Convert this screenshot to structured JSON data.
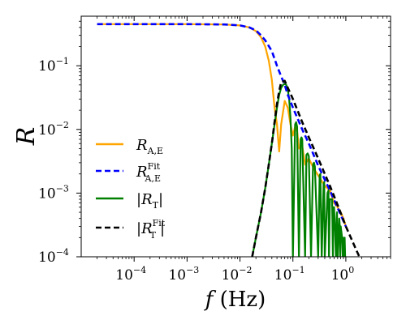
{
  "chart_data": {
    "type": "line",
    "x_scale": "log",
    "y_scale": "log",
    "xlim": [
      1e-05,
      7
    ],
    "ylim": [
      0.0001,
      0.6
    ],
    "x_ticks": [
      {
        "value": 0.0001,
        "base": "10",
        "exp": "−4"
      },
      {
        "value": 0.001,
        "base": "10",
        "exp": "−3"
      },
      {
        "value": 0.01,
        "base": "10",
        "exp": "−2"
      },
      {
        "value": 0.1,
        "base": "10",
        "exp": "−1"
      },
      {
        "value": 1,
        "base": "10",
        "exp": "0"
      }
    ],
    "y_ticks": [
      {
        "value": 0.0001,
        "base": "10",
        "exp": "−4"
      },
      {
        "value": 0.001,
        "base": "10",
        "exp": "−3"
      },
      {
        "value": 0.01,
        "base": "10",
        "exp": "−2"
      },
      {
        "value": 0.1,
        "base": "10",
        "exp": "−1"
      }
    ],
    "xlabel": "f (Hz)",
    "ylabel": "R",
    "grid": false,
    "legend_placement": "lower-left",
    "series": [
      {
        "name": "R_A,E",
        "color": "#ffa500",
        "style": "solid",
        "x": [
          2e-05,
          0.0001,
          0.001,
          0.005,
          0.01,
          0.015,
          0.02,
          0.025,
          0.03,
          0.035,
          0.04,
          0.045,
          0.05,
          0.055,
          0.06,
          0.07,
          0.08,
          0.09,
          0.1,
          0.11,
          0.12,
          0.13,
          0.15,
          0.17,
          0.2,
          0.25,
          0.3,
          0.4,
          0.5,
          0.6,
          0.7,
          0.8,
          0.9,
          1.0
        ],
        "y": [
          0.45,
          0.45,
          0.45,
          0.445,
          0.43,
          0.4,
          0.35,
          0.28,
          0.2,
          0.12,
          0.06,
          0.022,
          0.012,
          0.0045,
          0.012,
          0.028,
          0.022,
          0.012,
          0.008,
          0.011,
          0.0095,
          0.005,
          0.0055,
          0.0028,
          0.0035,
          0.0024,
          0.0019,
          0.0013,
          0.0011,
          0.0007,
          0.0006,
          0.0005,
          0.0004,
          0.0003
        ]
      },
      {
        "name": "R_A,E^Fit",
        "color": "#0000ff",
        "style": "dashed",
        "x": [
          2e-05,
          0.0001,
          0.001,
          0.005,
          0.01,
          0.015,
          0.02,
          0.025,
          0.03,
          0.04,
          0.05,
          0.06,
          0.07,
          0.08,
          0.1,
          0.15,
          0.2,
          0.3,
          0.5,
          1.0
        ],
        "y": [
          0.45,
          0.45,
          0.45,
          0.445,
          0.43,
          0.4,
          0.36,
          0.3,
          0.25,
          0.17,
          0.1,
          0.068,
          0.05,
          0.035,
          0.022,
          0.01,
          0.006,
          0.0027,
          0.0011,
          0.0003
        ]
      },
      {
        "name": "|R_T|",
        "color": "#008000",
        "style": "solid",
        "x": [
          0.017,
          0.02,
          0.025,
          0.03,
          0.035,
          0.04,
          0.045,
          0.05,
          0.055,
          0.06,
          0.065,
          0.07,
          0.075,
          0.08,
          0.085,
          0.09,
          0.095,
          0.1,
          0.11,
          0.115,
          0.12,
          0.13,
          0.14,
          0.145,
          0.15,
          0.17,
          0.18,
          0.19,
          0.2,
          0.22,
          0.24,
          0.25,
          0.26,
          0.3,
          0.32,
          0.33,
          0.35,
          0.38,
          0.39,
          0.4,
          0.45,
          0.47,
          0.48,
          0.5,
          0.55,
          0.57,
          0.58,
          0.6,
          0.65,
          0.67,
          0.68,
          0.7,
          0.75,
          0.77,
          0.78,
          0.8,
          0.85,
          0.87,
          0.88,
          0.9,
          0.95,
          0.97,
          1.0
        ],
        "y": [
          0.0001,
          0.0002,
          0.0005,
          0.0012,
          0.0028,
          0.006,
          0.012,
          0.022,
          0.035,
          0.045,
          0.05,
          0.052,
          0.05,
          0.042,
          0.03,
          0.015,
          0.005,
          0.0001,
          0.012,
          0.013,
          0.011,
          0.0001,
          0.007,
          0.0075,
          0.007,
          0.0001,
          0.004,
          0.0042,
          0.0038,
          0.0001,
          0.0028,
          0.003,
          0.0026,
          0.0001,
          0.0019,
          0.002,
          0.0001,
          0.0014,
          0.0015,
          0.0001,
          0.001,
          0.0011,
          0.0001,
          0.0008,
          0.0008,
          0.0001,
          0.0006,
          0.0006,
          0.0001,
          0.0004,
          0.0005,
          0.0001,
          0.0004,
          0.0003,
          0.0001,
          0.0003,
          0.0002,
          0.0001,
          0.0002,
          0.0001,
          0.0002,
          0.0001,
          0.0001
        ]
      },
      {
        "name": "|R_T^Fit|",
        "color": "#000000",
        "style": "dashed",
        "x": [
          0.017,
          0.02,
          0.025,
          0.03,
          0.035,
          0.04,
          0.045,
          0.05,
          0.055,
          0.06,
          0.07,
          0.08,
          0.1,
          0.15,
          0.2,
          0.3,
          0.5,
          0.7,
          1.0,
          1.5,
          1.8
        ],
        "y": [
          0.0001,
          0.0002,
          0.0005,
          0.0012,
          0.0028,
          0.006,
          0.013,
          0.025,
          0.04,
          0.055,
          0.058,
          0.045,
          0.03,
          0.013,
          0.0075,
          0.0035,
          0.0013,
          0.00065,
          0.0003,
          0.00014,
          0.0001
        ]
      }
    ],
    "legend": [
      {
        "main": "R",
        "sub": "A,E",
        "sup": "",
        "bars": false,
        "color": "#ffa500",
        "dashed": false
      },
      {
        "main": "R",
        "sub": "A,E",
        "sup": "Fit",
        "bars": false,
        "color": "#0000ff",
        "dashed": true
      },
      {
        "main": "R",
        "sub": "T",
        "sup": "",
        "bars": true,
        "color": "#008000",
        "dashed": false
      },
      {
        "main": "R",
        "sub": "T",
        "sup": "Fit",
        "bars": true,
        "color": "#000000",
        "dashed": true
      }
    ]
  }
}
